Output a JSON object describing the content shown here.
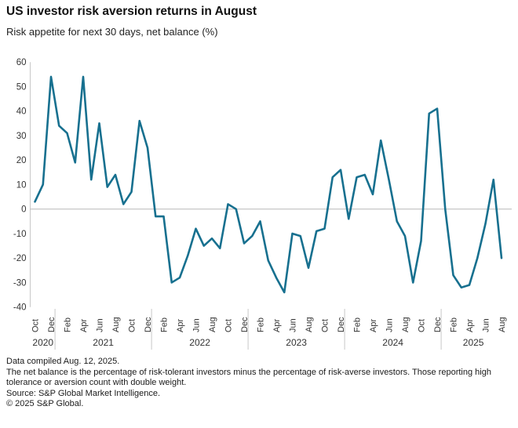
{
  "header": {
    "title": "US investor risk aversion returns in August",
    "subtitle": "Risk appetite for next 30 days, net balance (%)"
  },
  "chart_data": {
    "type": "line",
    "title": "US investor risk aversion returns in August",
    "subtitle": "Risk appetite for next 30 days, net balance (%)",
    "xlabel": "",
    "ylabel": "Risk appetite for next 30 days, net balance (%)",
    "ylim": [
      -40,
      60
    ],
    "yticks": [
      60,
      50,
      40,
      30,
      20,
      10,
      0,
      -10,
      -20,
      -30,
      -40
    ],
    "xtick_every_months": 2,
    "grid": "zero-line-only",
    "legend_position": "none",
    "colors": {
      "line": "#17708f",
      "axis": "#c8c8c8",
      "tick_text": "#333333"
    },
    "months": [
      "Oct 2020",
      "Nov 2020",
      "Dec 2020",
      "Jan 2021",
      "Feb 2021",
      "Mar 2021",
      "Apr 2021",
      "May 2021",
      "Jun 2021",
      "Jul 2021",
      "Aug 2021",
      "Sep 2021",
      "Oct 2021",
      "Nov 2021",
      "Dec 2021",
      "Jan 2022",
      "Feb 2022",
      "Mar 2022",
      "Apr 2022",
      "May 2022",
      "Jun 2022",
      "Jul 2022",
      "Aug 2022",
      "Sep 2022",
      "Oct 2022",
      "Nov 2022",
      "Dec 2022",
      "Jan 2023",
      "Feb 2023",
      "Mar 2023",
      "Apr 2023",
      "May 2023",
      "Jun 2023",
      "Jul 2023",
      "Aug 2023",
      "Sep 2023",
      "Oct 2023",
      "Nov 2023",
      "Dec 2023",
      "Jan 2024",
      "Feb 2024",
      "Mar 2024",
      "Apr 2024",
      "May 2024",
      "Jun 2024",
      "Jul 2024",
      "Aug 2024",
      "Sep 2024",
      "Oct 2024",
      "Nov 2024",
      "Dec 2024",
      "Jan 2025",
      "Feb 2025",
      "Mar 2025",
      "Apr 2025",
      "May 2025",
      "Jun 2025",
      "Jul 2025",
      "Aug 2025"
    ],
    "series": [
      {
        "name": "Risk appetite net balance (%)",
        "color": "#17708f",
        "values": [
          3,
          10,
          54,
          34,
          31,
          19,
          54,
          12,
          35,
          9,
          14,
          2,
          7,
          36,
          25,
          -3,
          -3,
          -30,
          -28,
          -19,
          -8,
          -15,
          -12,
          -16,
          2,
          0,
          -14,
          -11,
          -5,
          -21,
          -28,
          -34,
          -10,
          -11,
          -24,
          -9,
          -8,
          13,
          16,
          -4,
          13,
          14,
          6,
          28,
          12,
          -5,
          -11,
          -30,
          -13,
          39,
          41,
          0,
          -27,
          -32,
          -31,
          -20,
          -6,
          12,
          -20
        ]
      }
    ]
  },
  "footer": {
    "compiled": "Data compiled Aug. 12, 2025.",
    "note": "The net balance is the percentage of risk-tolerant investors minus the percentage of risk-averse investors. Those reporting high tolerance or aversion count with double weight.",
    "source": "Source: S&P Global Market Intelligence.",
    "copyright": "© 2025 S&P Global."
  }
}
